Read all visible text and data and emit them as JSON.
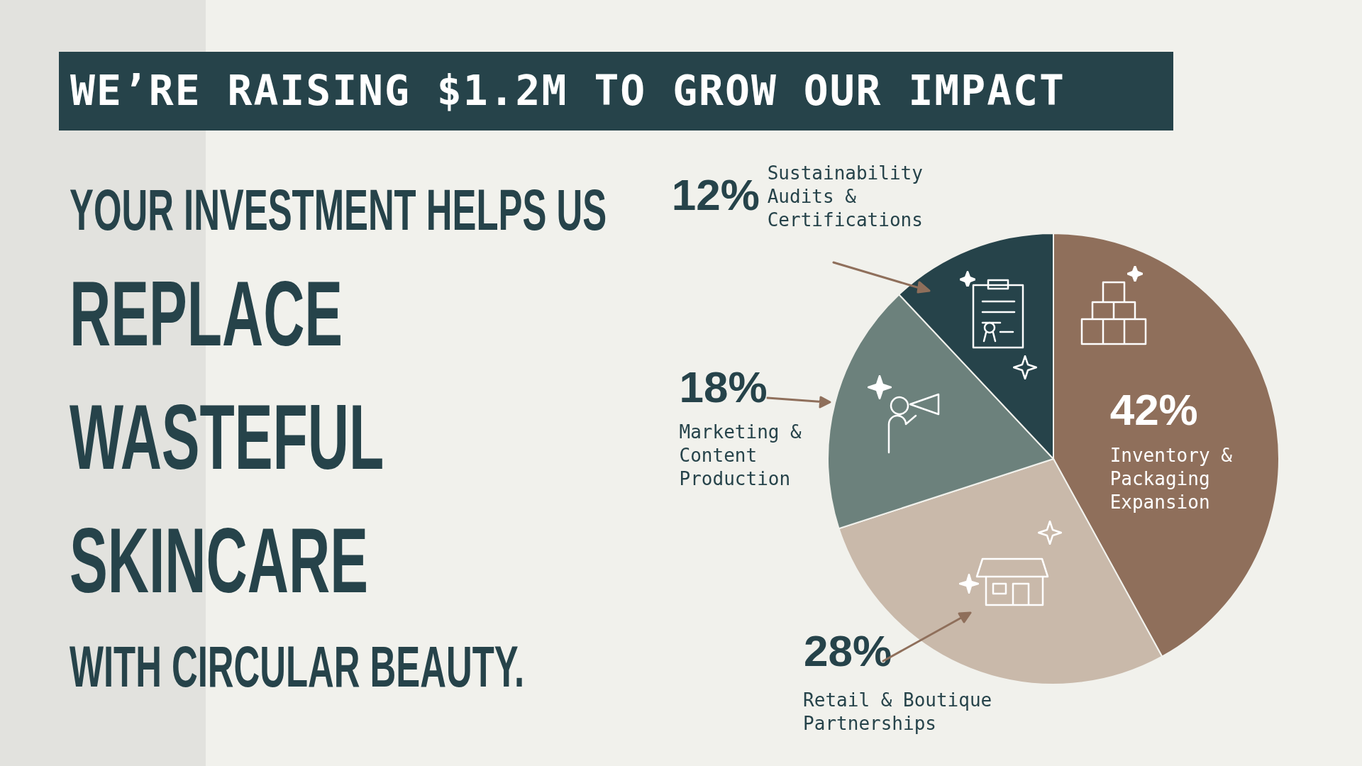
{
  "chart_data": {
    "type": "pie",
    "title": "WE’RE RAISING $1.2M TO GROW OUR IMPACT",
    "annotations": [
      "YOUR INVESTMENT HELPS US",
      "REPLACE",
      "WASTEFUL",
      "SKINCARE",
      "WITH CIRCULAR BEAUTY."
    ],
    "categories": [
      "Inventory & Packaging Expansion",
      "Retail & Boutique Partnerships",
      "Marketing & Content Production",
      "Sustainability Audits & Certifications"
    ],
    "values": [
      42,
      28,
      18,
      12
    ],
    "colors": [
      "#8f6f5b",
      "#c9b9aa",
      "#6c817c",
      "#26434a"
    ],
    "value_labels": [
      "42%",
      "28%",
      "18%",
      "12%"
    ]
  }
}
